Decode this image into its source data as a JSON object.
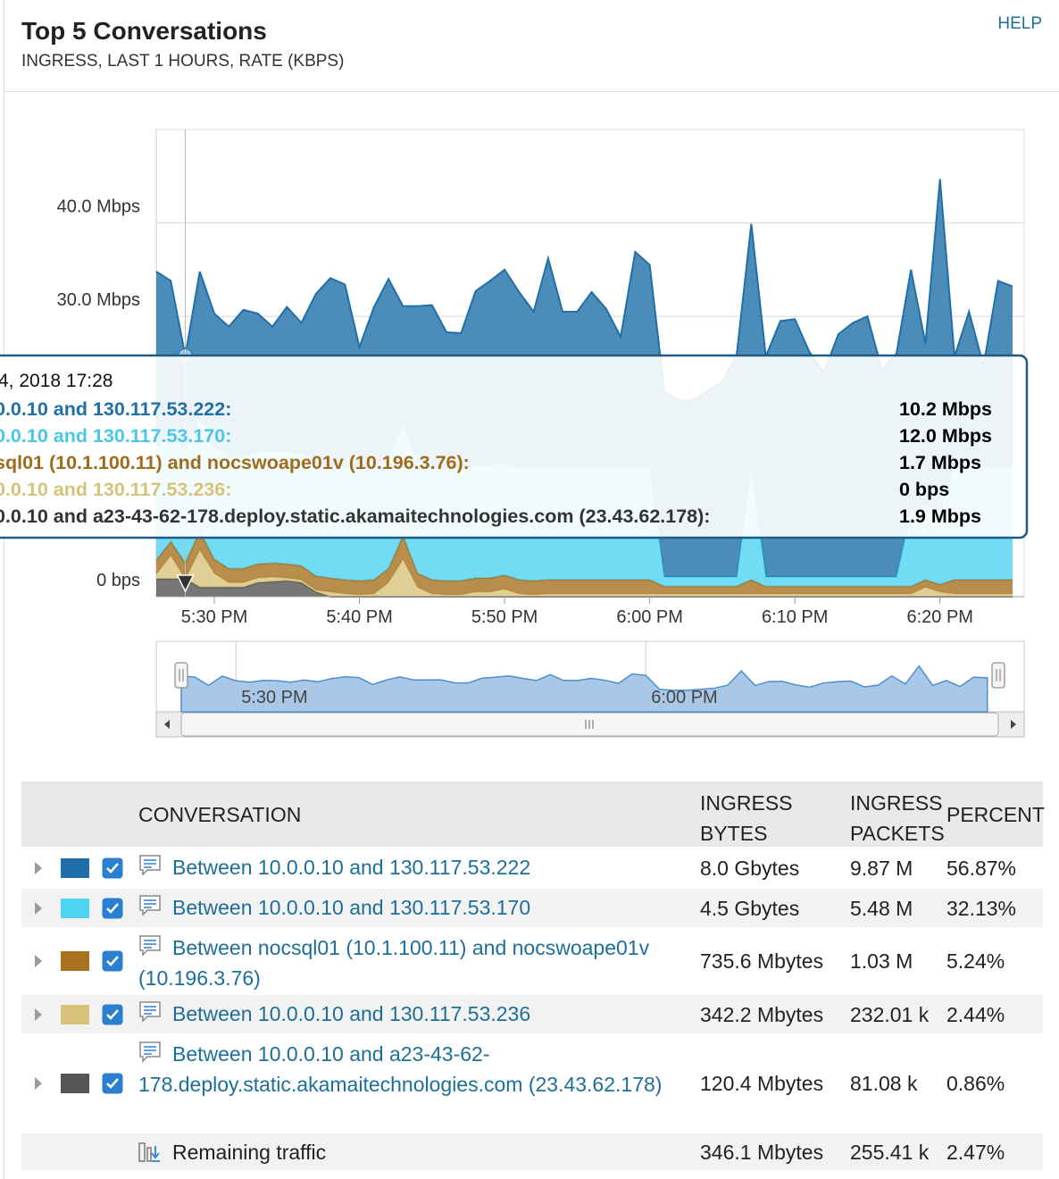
{
  "header": {
    "title": "Top 5 Conversations",
    "subtitle": "INGRESS, LAST 1 HOURS, RATE (KBPS)",
    "help": "HELP"
  },
  "chart_data": {
    "type": "area",
    "stacked": true,
    "x": [
      26,
      27,
      28,
      29,
      30,
      31,
      32,
      33,
      34,
      35,
      36,
      37,
      38,
      39,
      40,
      41,
      42,
      43,
      44,
      45,
      46,
      47,
      48,
      49,
      50,
      51,
      52,
      53,
      54,
      55,
      56,
      57,
      58,
      59,
      60,
      61,
      62,
      63,
      64,
      65,
      66,
      67,
      68,
      69,
      70,
      71,
      72,
      73,
      74,
      75,
      76,
      77,
      78,
      79,
      80,
      81,
      82,
      83,
      84,
      85
    ],
    "xlim": [
      26,
      85.8
    ],
    "xticks": [
      {
        "value": 30,
        "label": "5:30 PM"
      },
      {
        "value": 40,
        "label": "5:40 PM"
      },
      {
        "value": 50,
        "label": "5:50 PM"
      },
      {
        "value": 60,
        "label": "6:00 PM"
      },
      {
        "value": 70,
        "label": "6:10 PM"
      },
      {
        "value": 80,
        "label": "6:20 PM"
      }
    ],
    "ylim": [
      0,
      50
    ],
    "yticks": [
      {
        "value": 0,
        "label": "0 bps"
      },
      {
        "value": 30,
        "label": "30.0 Mbps"
      },
      {
        "value": 40,
        "label": "40.0 Mbps"
      }
    ],
    "grid": true,
    "series": [
      {
        "name": "Between 10.0.0.10 and 130.117.53.222",
        "color": "#1f6fa8",
        "values": [
          18.9,
          15.9,
          10.2,
          15.8,
          14.3,
          13.9,
          15.7,
          14.8,
          13.3,
          15.5,
          14.0,
          18.2,
          20.1,
          19.6,
          13.0,
          17.2,
          19.0,
          12.6,
          16.6,
          17.4,
          14.6,
          14.5,
          18.7,
          19.8,
          20.7,
          18.8,
          16.8,
          22.4,
          16.7,
          16.7,
          18.8,
          17.0,
          14.0,
          23.1,
          21.7,
          19.9,
          18.9,
          18.9,
          19.9,
          20.9,
          23.9,
          26.1,
          23.6,
          27.4,
          27.6,
          24.1,
          21.9,
          26.0,
          27.2,
          27.9,
          22.2,
          23.9,
          25.9,
          17.3,
          35.4,
          11.9,
          16.7,
          10.9,
          20.0,
          19.4
        ]
      },
      {
        "name": "Between 10.0.0.10 and 130.117.53.170",
        "color": "#4fd3f2",
        "values": [
          12,
          12,
          12.0,
          12,
          12,
          12,
          12,
          12,
          12,
          12,
          12,
          12,
          12,
          12,
          12,
          12,
          12,
          12,
          12,
          12,
          12,
          12,
          12,
          12,
          12,
          12,
          12,
          12,
          12,
          12,
          12,
          12,
          12,
          12,
          12,
          1,
          1,
          1,
          1,
          1,
          1,
          12,
          1,
          1,
          1,
          1,
          1,
          1,
          1,
          1,
          1,
          1,
          8,
          8,
          8,
          12,
          12,
          12,
          12,
          12
        ]
      },
      {
        "name": "Between nocsql01 (10.1.100.11) and nocswoape01v (10.196.3.76)",
        "color": "#a8721f",
        "values": [
          1.5,
          1.5,
          1.7,
          2.0,
          1.5,
          1.5,
          1.5,
          1.5,
          1.5,
          1.5,
          1.5,
          1.5,
          1.5,
          1.5,
          1.5,
          1.5,
          1.5,
          2.5,
          1.5,
          1.5,
          1.5,
          1.5,
          1.5,
          1.5,
          1.5,
          1.5,
          1.5,
          1.5,
          1.5,
          1.5,
          1.5,
          1.5,
          1.5,
          1.5,
          1.5,
          0.8,
          0.8,
          0.8,
          0.8,
          0.8,
          0.8,
          1.5,
          0.8,
          0.8,
          0.8,
          0.8,
          0.8,
          0.8,
          0.8,
          0.8,
          0.8,
          0.8,
          0.8,
          0.8,
          0.8,
          1.5,
          1.5,
          1.5,
          1.5,
          1.5
        ]
      },
      {
        "name": "Between 10.0.0.10 and 130.117.53.236",
        "color": "#d8c37c",
        "values": [
          0.5,
          2.5,
          0,
          4.0,
          1.5,
          0.5,
          0.5,
          0.5,
          0.5,
          0.3,
          0.3,
          0.2,
          0.5,
          0.3,
          0.2,
          0.3,
          1.5,
          4.0,
          1.0,
          0.3,
          0.2,
          0.2,
          0.5,
          0.5,
          0.8,
          0.3,
          0.2,
          0.3,
          0.3,
          0.3,
          0.3,
          0.3,
          0.3,
          0.3,
          0.3,
          0.3,
          0.3,
          0.3,
          0.3,
          0.3,
          0.3,
          0.3,
          0.3,
          0.3,
          0.3,
          0.3,
          0.3,
          0.3,
          0.3,
          0.3,
          0.3,
          0.3,
          0.3,
          1.0,
          0.5,
          0.3,
          0.3,
          0.3,
          0.3,
          0.3
        ]
      },
      {
        "name": "Between 10.0.0.10 and a23-43-62-178.deploy.static.akamaitechnologies.com (23.43.62.178)",
        "color": "#555555",
        "values": [
          1.9,
          1.9,
          1.9,
          1.0,
          1.0,
          1.0,
          1.0,
          1.5,
          1.6,
          1.7,
          1.5,
          0.5,
          0,
          0,
          0,
          0,
          0,
          0,
          0,
          0,
          0,
          0,
          0,
          0,
          0,
          0,
          0,
          0,
          0,
          0,
          0,
          0,
          0,
          0,
          0,
          0,
          0,
          0,
          0,
          0,
          0,
          0,
          0,
          0,
          0,
          0,
          0,
          0,
          0,
          0,
          0,
          0,
          0,
          0,
          0,
          0,
          0,
          0,
          0,
          0
        ]
      }
    ],
    "tooltip": {
      "title": "4, 2018 17:28",
      "rows": [
        {
          "label": "0.0.10 and 130.117.53.222:",
          "value": "10.2 Mbps"
        },
        {
          "label": "0.0.10 and 130.117.53.170:",
          "value": "12.0 Mbps"
        },
        {
          "label": "sql01 (10.1.100.11) and nocswoape01v (10.196.3.76):",
          "value": "1.7 Mbps"
        },
        {
          "label": "0.0.10 and 130.117.53.236:",
          "value": "0 bps"
        },
        {
          "label": "0.0.10 and a23-43-62-178.deploy.static.akamaitechnologies.com (23.43.62.178):",
          "value": "1.9 Mbps"
        }
      ]
    }
  },
  "table": {
    "headers": [
      "CONVERSATION",
      "INGRESS BYTES",
      "INGRESS PACKETS",
      "PERCENT"
    ],
    "rows": [
      [
        "8.0 Gbytes",
        "9.87 M",
        "56.87%"
      ],
      [
        "4.5 Gbytes",
        "5.48 M",
        "32.13%"
      ],
      [
        "735.6 Mbytes",
        "1.03 M",
        "5.24%"
      ],
      [
        "342.2 Mbytes",
        "232.01 k",
        "2.44%"
      ],
      [
        "120.4 Mbytes",
        "81.08 k",
        "0.86%"
      ]
    ],
    "remaining": {
      "name": "Remaining traffic",
      "bytes": "346.1 Mbytes",
      "packets": "255.41 k",
      "percent": "2.47%"
    }
  }
}
